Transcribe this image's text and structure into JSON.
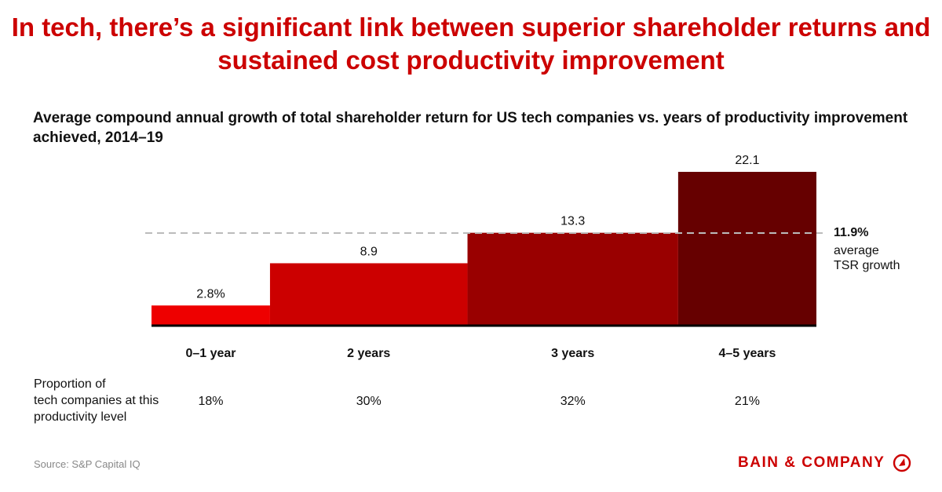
{
  "title": "In tech, there’s a significant link between superior shareholder returns and sustained cost productivity improvement",
  "chart_data": {
    "type": "bar",
    "subtitle": "Average compound annual growth of total shareholder return for US tech companies vs. years of productivity improvement achieved, 2014–19",
    "categories": [
      "0–1 year",
      "2 years",
      "3 years",
      "4–5 years"
    ],
    "values": [
      2.8,
      8.9,
      13.3,
      22.1
    ],
    "value_labels": [
      "2.8%",
      "8.9",
      "13.3",
      "22.1"
    ],
    "widths_percent": [
      18,
      30,
      32,
      21
    ],
    "width_labels": [
      "18%",
      "30%",
      "32%",
      "21%"
    ],
    "width_row_label": "Proportion of tech companies at this productivity level",
    "colors": [
      "#ee0000",
      "#cc0000",
      "#990000",
      "#660000"
    ],
    "reference_line": {
      "value": 11.9,
      "label_value": "11.9%",
      "label_text": "average TSR growth"
    },
    "ylim": [
      0,
      22.1
    ],
    "grid": false
  },
  "source": "Source: S&P Capital IQ",
  "logo": "BAIN & COMPANY"
}
